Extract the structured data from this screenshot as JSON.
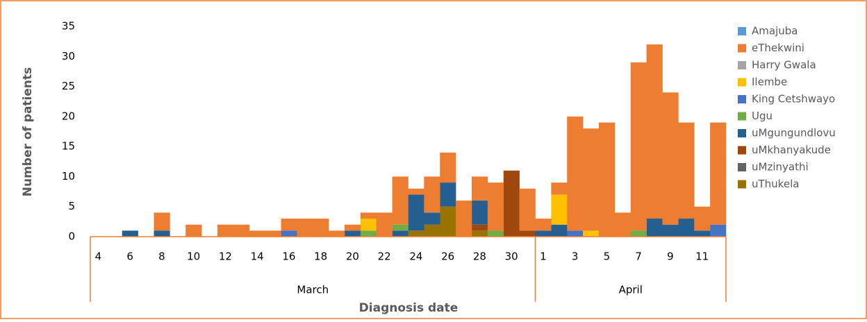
{
  "chart_data": {
    "type": "bar",
    "stacked": true,
    "x_label": "Diagnosis date",
    "y_label": "Number of patients",
    "categories": [
      "4",
      null,
      "6",
      null,
      "8",
      null,
      "10",
      null,
      "12",
      null,
      "14",
      null,
      "16",
      null,
      "18",
      null,
      "20",
      null,
      "22",
      null,
      "24",
      null,
      "26",
      null,
      "28",
      null,
      "30",
      null,
      "1",
      null,
      "3",
      null,
      "5",
      null,
      "7",
      null,
      "9",
      null,
      "11",
      null
    ],
    "groups": [
      {
        "name": "March",
        "span": 28
      },
      {
        "name": "April",
        "span": 12
      }
    ],
    "ylim": [
      0,
      35
    ],
    "yticks": [
      0,
      5,
      10,
      15,
      20,
      25,
      30,
      35
    ],
    "grid": false,
    "legend": "right",
    "series": [
      {
        "name": "Amajuba",
        "color": "#5b9bd5",
        "values": [
          0,
          0,
          0,
          0,
          0,
          0,
          0,
          0,
          0,
          0,
          0,
          0,
          0,
          0,
          0,
          0,
          0,
          0,
          0,
          0,
          0,
          0,
          0,
          0,
          0,
          0,
          0,
          0,
          0,
          0,
          0,
          0,
          0,
          0,
          0,
          0,
          0,
          0,
          0,
          0
        ]
      },
      {
        "name": "eThekwini",
        "color": "#ed7d31",
        "values": [
          0,
          0,
          0,
          0,
          3,
          0,
          2,
          0,
          2,
          2,
          1,
          1,
          2,
          3,
          3,
          1,
          1,
          1,
          4,
          8,
          1,
          6,
          5,
          6,
          4,
          8,
          0,
          7,
          2,
          2,
          19,
          17,
          19,
          4,
          28,
          29,
          22,
          16,
          4,
          17
        ]
      },
      {
        "name": "Harry Gwala",
        "color": "#a5a5a5",
        "values": [
          0,
          0,
          0,
          0,
          0,
          0,
          0,
          0,
          0,
          0,
          0,
          0,
          0,
          0,
          0,
          0,
          0,
          0,
          0,
          0,
          0,
          0,
          0,
          0,
          0,
          0,
          0,
          0,
          0,
          0,
          0,
          0,
          0,
          0,
          0,
          0,
          0,
          0,
          0,
          0
        ]
      },
      {
        "name": "Ilembe",
        "color": "#ffc000",
        "values": [
          0,
          0,
          0,
          0,
          0,
          0,
          0,
          0,
          0,
          0,
          0,
          0,
          0,
          0,
          0,
          0,
          0,
          2,
          0,
          0,
          0,
          0,
          0,
          0,
          0,
          0,
          0,
          0,
          0,
          5,
          0,
          1,
          0,
          0,
          0,
          0,
          0,
          0,
          0,
          0
        ]
      },
      {
        "name": "King Cetshwayo",
        "color": "#4472c4",
        "values": [
          0,
          0,
          0,
          0,
          0,
          0,
          0,
          0,
          0,
          0,
          0,
          0,
          1,
          0,
          0,
          0,
          0,
          0,
          0,
          0,
          0,
          0,
          0,
          0,
          0,
          0,
          0,
          0,
          0,
          0,
          1,
          0,
          0,
          0,
          0,
          0,
          0,
          0,
          0,
          2
        ]
      },
      {
        "name": "Ugu",
        "color": "#70ad47",
        "values": [
          0,
          0,
          0,
          0,
          0,
          0,
          0,
          0,
          0,
          0,
          0,
          0,
          0,
          0,
          0,
          0,
          0,
          1,
          0,
          1,
          0,
          0,
          0,
          0,
          0,
          1,
          0,
          0,
          0,
          0,
          0,
          0,
          0,
          0,
          1,
          0,
          0,
          0,
          0,
          0
        ]
      },
      {
        "name": "uMgungundlovu",
        "color": "#255e91",
        "values": [
          0,
          0,
          1,
          0,
          1,
          0,
          0,
          0,
          0,
          0,
          0,
          0,
          0,
          0,
          0,
          0,
          1,
          0,
          0,
          1,
          6,
          2,
          4,
          0,
          4,
          0,
          0,
          0,
          1,
          2,
          0,
          0,
          0,
          0,
          0,
          3,
          2,
          3,
          1,
          0
        ]
      },
      {
        "name": "uMkhanyakude",
        "color": "#9e480e",
        "values": [
          0,
          0,
          0,
          0,
          0,
          0,
          0,
          0,
          0,
          0,
          0,
          0,
          0,
          0,
          0,
          0,
          0,
          0,
          0,
          0,
          0,
          0,
          0,
          0,
          1,
          0,
          11,
          1,
          0,
          0,
          0,
          0,
          0,
          0,
          0,
          0,
          0,
          0,
          0,
          0
        ]
      },
      {
        "name": "uMzinyathi",
        "color": "#636363",
        "values": [
          0,
          0,
          0,
          0,
          0,
          0,
          0,
          0,
          0,
          0,
          0,
          0,
          0,
          0,
          0,
          0,
          0,
          0,
          0,
          0,
          0,
          0,
          0,
          0,
          0,
          0,
          0,
          0,
          0,
          0,
          0,
          0,
          0,
          0,
          0,
          0,
          0,
          0,
          0,
          0
        ]
      },
      {
        "name": "uThukela",
        "color": "#997300",
        "values": [
          0,
          0,
          0,
          0,
          0,
          0,
          0,
          0,
          0,
          0,
          0,
          0,
          0,
          0,
          0,
          0,
          0,
          0,
          0,
          0,
          1,
          2,
          5,
          0,
          1,
          0,
          0,
          0,
          0,
          0,
          0,
          0,
          0,
          0,
          0,
          0,
          0,
          0,
          0,
          0
        ]
      }
    ]
  }
}
